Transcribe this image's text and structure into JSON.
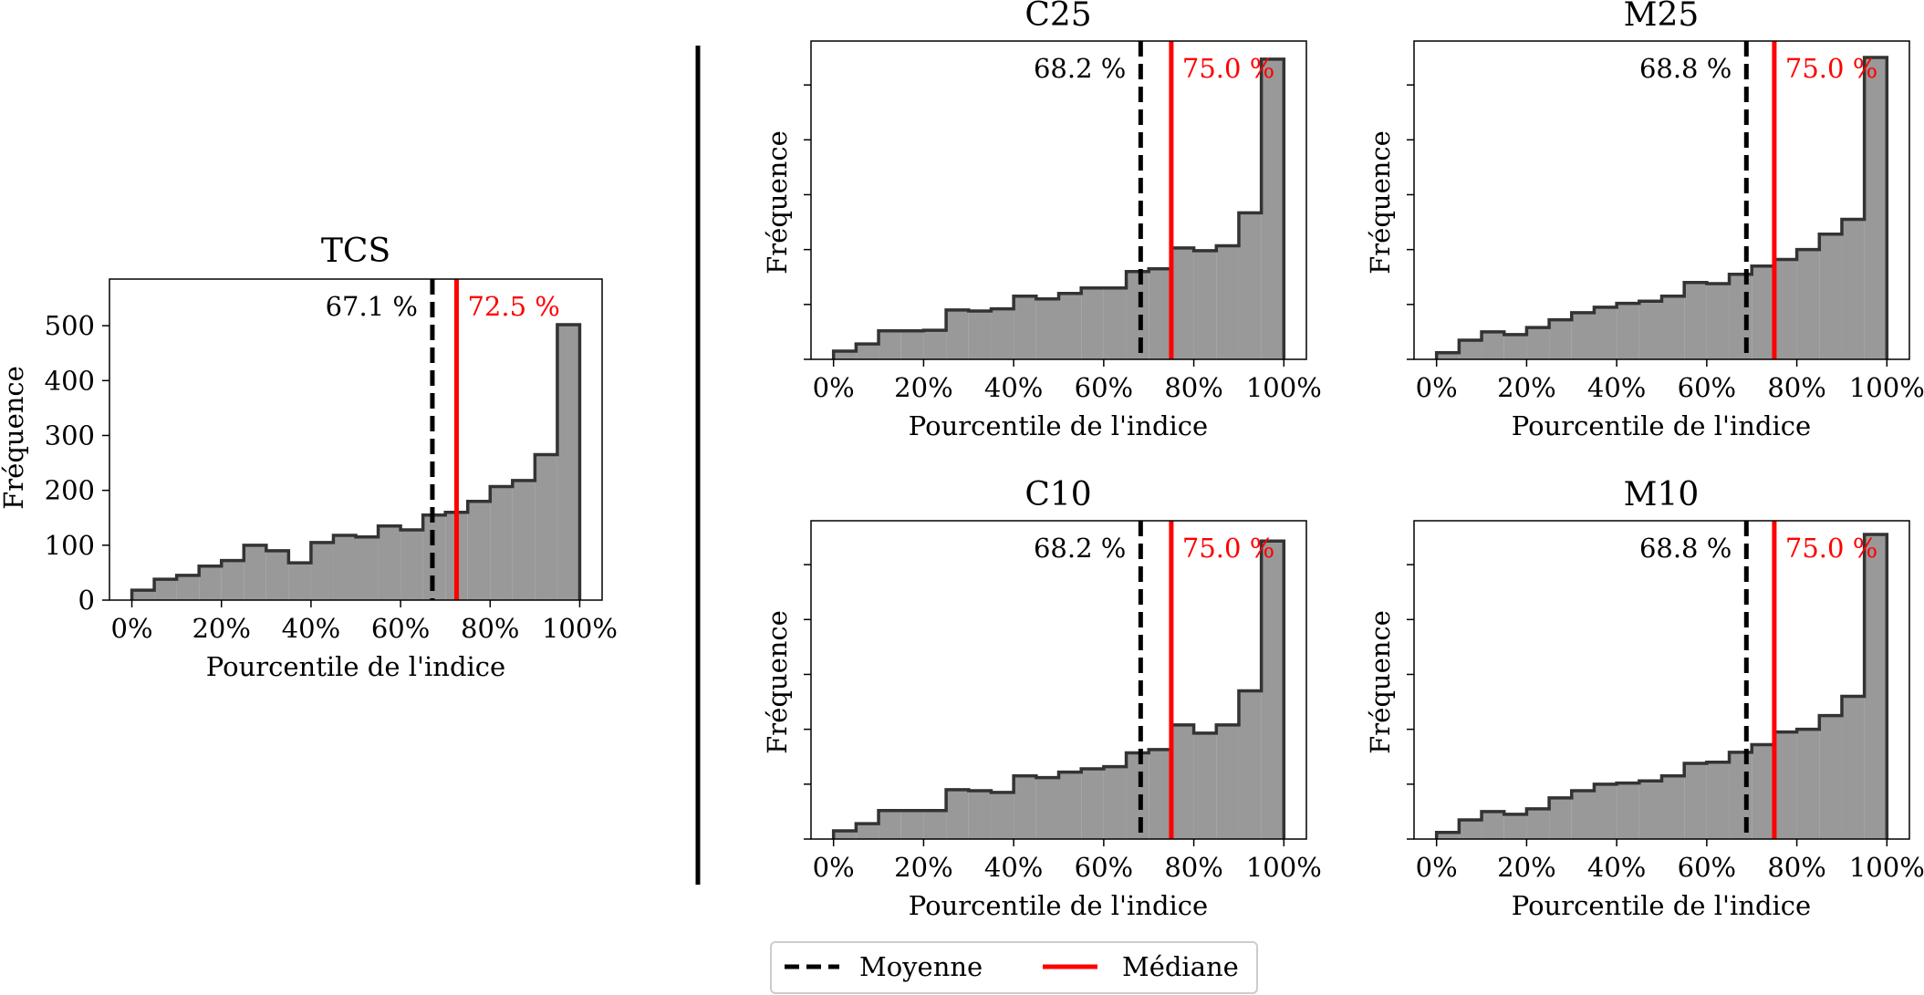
{
  "colors": {
    "bar_fill": "#999999",
    "bar_edge": "#333333",
    "mean_line": "#000000",
    "median_line": "#ff0000",
    "axis": "#000000",
    "separator": "#000000"
  },
  "legend": {
    "placement": "bottom-center",
    "mean_label": "Moyenne",
    "median_label": "Médiane"
  },
  "chart_data": [
    {
      "id": "tcs",
      "type": "bar",
      "title": "TCS",
      "xlabel": "Pourcentile de l'indice",
      "ylabel": "Fréquence",
      "xlim": [
        -0.05,
        1.05
      ],
      "ylim": [
        0,
        585
      ],
      "yticks": [
        0,
        100,
        200,
        300,
        400,
        500
      ],
      "ytick_labels": [
        "0",
        "100",
        "200",
        "300",
        "400",
        "500"
      ],
      "xticks": [
        0,
        0.2,
        0.4,
        0.6,
        0.8,
        1.0
      ],
      "xtick_labels": [
        "0%",
        "20%",
        "40%",
        "60%",
        "80%",
        "100%"
      ],
      "bin_edges": [
        0,
        0.05,
        0.1,
        0.15,
        0.2,
        0.25,
        0.3,
        0.35,
        0.4,
        0.45,
        0.5,
        0.55,
        0.6,
        0.65,
        0.7,
        0.75,
        0.8,
        0.85,
        0.9,
        0.95,
        1.0
      ],
      "values": [
        18,
        38,
        45,
        62,
        72,
        100,
        90,
        68,
        105,
        118,
        115,
        135,
        128,
        155,
        160,
        180,
        207,
        218,
        265,
        502
      ],
      "mean": 0.671,
      "mean_label": "67.1 %",
      "median": 0.725,
      "median_label": "72.5 %",
      "grid": false
    },
    {
      "id": "c25",
      "type": "bar",
      "title": "C25",
      "xlabel": "Pourcentile de l'indice",
      "ylabel": "Fréquence",
      "xlim": [
        -0.05,
        1.05
      ],
      "ylim": [
        0,
        580
      ],
      "yticks": [
        0,
        100,
        200,
        300,
        400,
        500
      ],
      "ytick_labels": [
        "",
        "",
        "",
        "",
        "",
        ""
      ],
      "xticks": [
        0,
        0.2,
        0.4,
        0.6,
        0.8,
        1.0
      ],
      "xtick_labels": [
        "0%",
        "20%",
        "40%",
        "60%",
        "80%",
        "100%"
      ],
      "bin_edges": [
        0,
        0.05,
        0.1,
        0.15,
        0.2,
        0.25,
        0.3,
        0.35,
        0.4,
        0.45,
        0.5,
        0.55,
        0.6,
        0.65,
        0.7,
        0.75,
        0.8,
        0.85,
        0.9,
        0.95,
        1.0
      ],
      "values": [
        15,
        28,
        52,
        52,
        53,
        90,
        88,
        92,
        115,
        110,
        120,
        130,
        130,
        160,
        165,
        203,
        198,
        207,
        267,
        547
      ],
      "mean": 0.682,
      "mean_label": "68.2 %",
      "median": 0.75,
      "median_label": "75.0 %",
      "grid": false
    },
    {
      "id": "m25",
      "type": "bar",
      "title": "M25",
      "xlabel": "Pourcentile de l'indice",
      "ylabel": "Fréquence",
      "xlim": [
        -0.05,
        1.05
      ],
      "ylim": [
        0,
        580
      ],
      "yticks": [
        0,
        100,
        200,
        300,
        400,
        500
      ],
      "ytick_labels": [
        "",
        "",
        "",
        "",
        "",
        ""
      ],
      "xticks": [
        0,
        0.2,
        0.4,
        0.6,
        0.8,
        1.0
      ],
      "xtick_labels": [
        "0%",
        "20%",
        "40%",
        "60%",
        "80%",
        "100%"
      ],
      "bin_edges": [
        0,
        0.05,
        0.1,
        0.15,
        0.2,
        0.25,
        0.3,
        0.35,
        0.4,
        0.45,
        0.5,
        0.55,
        0.6,
        0.65,
        0.7,
        0.75,
        0.8,
        0.85,
        0.9,
        0.95,
        1.0
      ],
      "values": [
        12,
        35,
        50,
        45,
        58,
        72,
        85,
        95,
        102,
        106,
        115,
        140,
        138,
        155,
        170,
        182,
        200,
        228,
        255,
        550
      ],
      "mean": 0.688,
      "mean_label": "68.8 %",
      "median": 0.75,
      "median_label": "75.0 %",
      "grid": false
    },
    {
      "id": "c10",
      "type": "bar",
      "title": "C10",
      "xlabel": "Pourcentile de l'indice",
      "ylabel": "Fréquence",
      "xlim": [
        -0.05,
        1.05
      ],
      "ylim": [
        0,
        580
      ],
      "yticks": [
        0,
        100,
        200,
        300,
        400,
        500
      ],
      "ytick_labels": [
        "",
        "",
        "",
        "",
        "",
        ""
      ],
      "xticks": [
        0,
        0.2,
        0.4,
        0.6,
        0.8,
        1.0
      ],
      "xtick_labels": [
        "0%",
        "20%",
        "40%",
        "60%",
        "80%",
        "100%"
      ],
      "bin_edges": [
        0,
        0.05,
        0.1,
        0.15,
        0.2,
        0.25,
        0.3,
        0.35,
        0.4,
        0.45,
        0.5,
        0.55,
        0.6,
        0.65,
        0.7,
        0.75,
        0.8,
        0.85,
        0.9,
        0.95,
        1.0
      ],
      "values": [
        15,
        28,
        52,
        52,
        52,
        90,
        88,
        85,
        115,
        112,
        122,
        128,
        132,
        157,
        163,
        208,
        193,
        208,
        270,
        543
      ],
      "mean": 0.682,
      "mean_label": "68.2 %",
      "median": 0.75,
      "median_label": "75.0 %",
      "grid": false
    },
    {
      "id": "m10",
      "type": "bar",
      "title": "M10",
      "xlabel": "Pourcentile de l'indice",
      "ylabel": "Fréquence",
      "xlim": [
        -0.05,
        1.05
      ],
      "ylim": [
        0,
        580
      ],
      "yticks": [
        0,
        100,
        200,
        300,
        400,
        500
      ],
      "ytick_labels": [
        "",
        "",
        "",
        "",
        "",
        ""
      ],
      "xticks": [
        0,
        0.2,
        0.4,
        0.6,
        0.8,
        1.0
      ],
      "xtick_labels": [
        "0%",
        "20%",
        "40%",
        "60%",
        "80%",
        "100%"
      ],
      "bin_edges": [
        0,
        0.05,
        0.1,
        0.15,
        0.2,
        0.25,
        0.3,
        0.35,
        0.4,
        0.45,
        0.5,
        0.55,
        0.6,
        0.65,
        0.7,
        0.75,
        0.8,
        0.85,
        0.9,
        0.95,
        1.0
      ],
      "values": [
        12,
        35,
        50,
        45,
        55,
        75,
        88,
        100,
        102,
        106,
        115,
        138,
        140,
        158,
        172,
        195,
        200,
        225,
        260,
        555
      ],
      "mean": 0.688,
      "mean_label": "68.8 %",
      "median": 0.75,
      "median_label": "75.0 %",
      "grid": false
    }
  ]
}
